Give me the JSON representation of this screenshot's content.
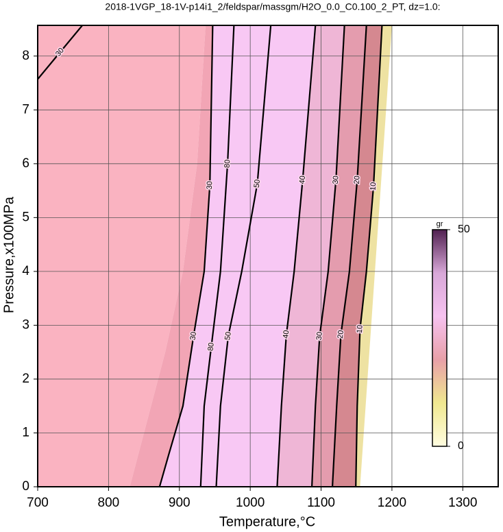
{
  "chart_data": {
    "type": "contour",
    "title": "2018-1VGP_18-1V-p14i1_2/feldspar/massgm/H2O_0.0_C0.100_2_PT, dz=1.0:",
    "x_label": "Temperature,°C",
    "y_label": "Pressure,x100MPa",
    "xlim": [
      700,
      1350
    ],
    "ylim": [
      0,
      8.57
    ],
    "xticks": [
      700,
      800,
      900,
      1000,
      1100,
      1200,
      1300
    ],
    "yticks": [
      0,
      1,
      2,
      3,
      4,
      5,
      6,
      7,
      8
    ],
    "grid": true,
    "grid_color": "#555555",
    "regions": [
      {
        "color": "#fab3c1",
        "x": [
          700,
          700,
          937,
          925,
          905,
          880,
          850,
          830
        ],
        "y": [
          0,
          8.57,
          8.57,
          6,
          4,
          2.5,
          1,
          0
        ]
      },
      {
        "color": "#f2a5b5",
        "x": [
          830,
          850,
          880,
          905,
          925,
          937,
          947,
          943,
          935,
          920,
          905,
          885,
          872
        ],
        "y": [
          0,
          1,
          2.5,
          4,
          6,
          8.57,
          8.57,
          5.6,
          4,
          2.8,
          1.5,
          0.6,
          0
        ]
      },
      {
        "color": "#f8c8f4",
        "x": [
          872,
          885,
          905,
          920,
          935,
          943,
          947,
          1092,
          1074,
          1062,
          1051,
          1044,
          1038
        ],
        "y": [
          0,
          0.6,
          1.5,
          2.8,
          4,
          5.6,
          8.57,
          8.57,
          5.7,
          4,
          2.83,
          1.5,
          0
        ]
      },
      {
        "color": "#efb6d6",
        "x": [
          1038,
          1044,
          1051,
          1062,
          1074,
          1092,
          1133,
          1121,
          1110,
          1098,
          1092,
          1087
        ],
        "y": [
          0,
          1.5,
          2.83,
          4,
          5.7,
          8.57,
          8.57,
          5.7,
          4,
          2.8,
          1.5,
          0
        ]
      },
      {
        "color": "#e49cae",
        "x": [
          1087,
          1092,
          1098,
          1110,
          1121,
          1133,
          1164,
          1151,
          1140,
          1128,
          1122,
          1116
        ],
        "y": [
          0,
          1.5,
          2.8,
          4,
          5.7,
          8.57,
          8.57,
          5.7,
          4,
          2.83,
          1.5,
          0
        ]
      },
      {
        "color": "#d58890",
        "x": [
          1116,
          1122,
          1128,
          1140,
          1151,
          1164,
          1186,
          1174,
          1164,
          1155,
          1151,
          1149
        ],
        "y": [
          0,
          1.5,
          2.83,
          4,
          5.7,
          8.57,
          8.57,
          5.58,
          4,
          2.93,
          1.5,
          0
        ]
      },
      {
        "color": "#eee2a2",
        "x": [
          1149,
          1151,
          1155,
          1164,
          1174,
          1186,
          1200,
          1155
        ],
        "y": [
          0,
          1.5,
          2.93,
          4,
          5.58,
          8.57,
          8.57,
          0
        ]
      }
    ],
    "contours": [
      {
        "level": 30,
        "x": [
          700,
          763
        ],
        "y": [
          7.57,
          8.57
        ]
      },
      {
        "level": 30,
        "x": [
          947,
          943,
          935,
          920,
          905,
          885,
          872
        ],
        "y": [
          8.57,
          5.6,
          4,
          2.8,
          1.5,
          0.6,
          0
        ]
      },
      {
        "level": 80,
        "x": [
          977,
          968,
          958,
          945,
          935,
          930
        ],
        "y": [
          8.57,
          6,
          4,
          2.6,
          1.5,
          0
        ]
      },
      {
        "level": 50,
        "x": [
          1029,
          1010,
          988,
          969,
          958,
          952
        ],
        "y": [
          8.57,
          5.63,
          4,
          2.8,
          1.5,
          0
        ]
      },
      {
        "level": 40,
        "x": [
          1092,
          1074,
          1062,
          1051,
          1044,
          1038
        ],
        "y": [
          8.57,
          5.7,
          4,
          2.83,
          1.5,
          0
        ]
      },
      {
        "level": 30,
        "x": [
          1133,
          1121,
          1110,
          1098,
          1092,
          1087
        ],
        "y": [
          8.57,
          5.7,
          4,
          2.8,
          1.5,
          0
        ]
      },
      {
        "level": 20,
        "x": [
          1164,
          1151,
          1140,
          1128,
          1122,
          1116
        ],
        "y": [
          8.57,
          5.7,
          4,
          2.83,
          1.5,
          0
        ]
      },
      {
        "level": 10,
        "x": [
          1186,
          1174,
          1164,
          1155,
          1151,
          1149
        ],
        "y": [
          8.57,
          5.58,
          4,
          2.93,
          1.5,
          0
        ]
      }
    ],
    "colorbar": {
      "label": "gr",
      "lim": [
        0,
        50
      ],
      "ticks": [
        0,
        50
      ],
      "colors": [
        "#fffde0",
        "#f0e890",
        "#e8a0a8",
        "#f6c2f0",
        "#d8a8d8",
        "#502050"
      ]
    }
  }
}
